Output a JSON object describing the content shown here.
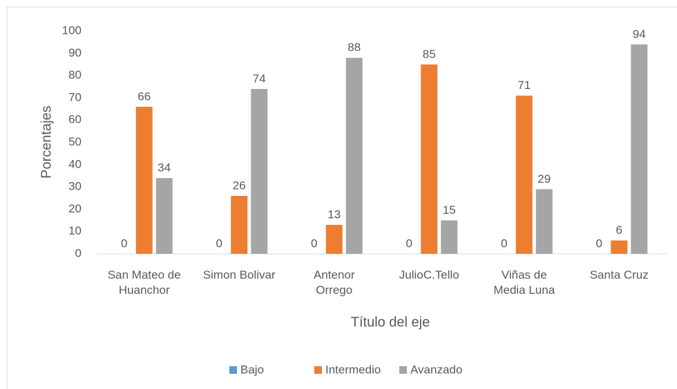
{
  "chart_data": {
    "type": "bar",
    "x_label": "Título del eje",
    "y_label": "Porcentajes",
    "categories": [
      "San Mateo de Huanchor",
      "Simon Bolivar",
      "Antenor Orrego",
      "JulioC.Tello",
      "Viñas de Media Luna",
      "Santa Cruz"
    ],
    "series": [
      {
        "name": "Bajo",
        "color": "#5b9bd5",
        "values": [
          0,
          0,
          0,
          0,
          0,
          0
        ]
      },
      {
        "name": "Intermedio",
        "color": "#ed7d31",
        "values": [
          66,
          26,
          13,
          85,
          71,
          6
        ]
      },
      {
        "name": "Avanzado",
        "color": "#a5a5a5",
        "values": [
          34,
          74,
          88,
          15,
          29,
          94
        ]
      }
    ],
    "ylim": [
      0,
      100
    ],
    "yticks": [
      0,
      10,
      20,
      30,
      40,
      50,
      60,
      70,
      80,
      90,
      100
    ],
    "grid": false,
    "legend": "bottom"
  }
}
